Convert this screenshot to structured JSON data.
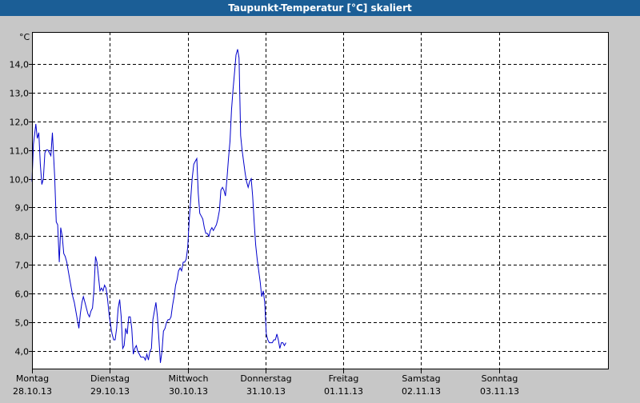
{
  "window": {
    "title": "Taupunkt-Temperatur [°C] skaliert"
  },
  "colors": {
    "titlebar": "#1b5e96",
    "background": "#c7c7c7",
    "plot": "#ffffff",
    "line": "#0000cc",
    "grid": "#000000"
  },
  "chart_data": {
    "type": "line",
    "title": "Taupunkt-Temperatur [°C] skaliert",
    "ylabel": "°C",
    "ylim": [
      3.4,
      15.1
    ],
    "xlim": [
      0,
      7.4
    ],
    "y_ticks": [
      {
        "value": 4,
        "label": "4,0"
      },
      {
        "value": 5,
        "label": "5,0"
      },
      {
        "value": 6,
        "label": "6,0"
      },
      {
        "value": 7,
        "label": "7,0"
      },
      {
        "value": 8,
        "label": "8,0"
      },
      {
        "value": 9,
        "label": "9,0"
      },
      {
        "value": 10,
        "label": "10,0"
      },
      {
        "value": 11,
        "label": "11,0"
      },
      {
        "value": 12,
        "label": "12,0"
      },
      {
        "value": 13,
        "label": "13,0"
      },
      {
        "value": 14,
        "label": "14,0"
      }
    ],
    "x_ticks": [
      {
        "value": 0,
        "day": "Montag",
        "date": "28.10.13"
      },
      {
        "value": 1,
        "day": "Dienstag",
        "date": "29.10.13"
      },
      {
        "value": 2,
        "day": "Mittwoch",
        "date": "30.10.13"
      },
      {
        "value": 3,
        "day": "Donnerstag",
        "date": "31.10.13"
      },
      {
        "value": 4,
        "day": "Freitag",
        "date": "01.11.13"
      },
      {
        "value": 5,
        "day": "Samstag",
        "date": "02.11.13"
      },
      {
        "value": 6,
        "day": "Sonntag",
        "date": "03.11.13"
      }
    ],
    "grid": true,
    "series": [
      {
        "points": [
          [
            0.0,
            9.9
          ],
          [
            0.019,
            11.2
          ],
          [
            0.049,
            11.9
          ],
          [
            0.068,
            11.4
          ],
          [
            0.087,
            11.6
          ],
          [
            0.107,
            10.5
          ],
          [
            0.126,
            9.8
          ],
          [
            0.146,
            10.0
          ],
          [
            0.165,
            10.9
          ],
          [
            0.184,
            11.0
          ],
          [
            0.204,
            11.0
          ],
          [
            0.223,
            10.9
          ],
          [
            0.243,
            10.8
          ],
          [
            0.262,
            11.6
          ],
          [
            0.291,
            10.1
          ],
          [
            0.311,
            8.5
          ],
          [
            0.33,
            8.4
          ],
          [
            0.35,
            7.1
          ],
          [
            0.369,
            8.3
          ],
          [
            0.388,
            8.0
          ],
          [
            0.408,
            7.4
          ],
          [
            0.427,
            7.3
          ],
          [
            0.447,
            7.1
          ],
          [
            0.466,
            6.8
          ],
          [
            0.485,
            6.5
          ],
          [
            0.505,
            6.2
          ],
          [
            0.524,
            5.9
          ],
          [
            0.544,
            5.7
          ],
          [
            0.563,
            5.4
          ],
          [
            0.583,
            5.1
          ],
          [
            0.602,
            4.8
          ],
          [
            0.621,
            5.3
          ],
          [
            0.641,
            5.7
          ],
          [
            0.66,
            5.9
          ],
          [
            0.68,
            5.7
          ],
          [
            0.699,
            5.5
          ],
          [
            0.718,
            5.3
          ],
          [
            0.738,
            5.2
          ],
          [
            0.757,
            5.4
          ],
          [
            0.777,
            5.5
          ],
          [
            0.796,
            6.1
          ],
          [
            0.816,
            7.3
          ],
          [
            0.835,
            7.1
          ],
          [
            0.854,
            6.6
          ],
          [
            0.874,
            6.1
          ],
          [
            0.893,
            6.2
          ],
          [
            0.913,
            6.1
          ],
          [
            0.932,
            6.3
          ],
          [
            0.951,
            6.2
          ],
          [
            0.971,
            5.8
          ],
          [
            0.99,
            5.3
          ],
          [
            1.01,
            4.9
          ],
          [
            1.029,
            4.6
          ],
          [
            1.049,
            4.4
          ],
          [
            1.068,
            4.4
          ],
          [
            1.087,
            4.8
          ],
          [
            1.107,
            5.5
          ],
          [
            1.126,
            5.8
          ],
          [
            1.146,
            5.2
          ],
          [
            1.165,
            4.1
          ],
          [
            1.184,
            4.2
          ],
          [
            1.204,
            4.8
          ],
          [
            1.223,
            4.6
          ],
          [
            1.243,
            5.2
          ],
          [
            1.262,
            5.2
          ],
          [
            1.282,
            4.8
          ],
          [
            1.301,
            3.9
          ],
          [
            1.32,
            4.1
          ],
          [
            1.34,
            4.2
          ],
          [
            1.359,
            4.0
          ],
          [
            1.379,
            3.9
          ],
          [
            1.398,
            3.8
          ],
          [
            1.417,
            3.8
          ],
          [
            1.437,
            3.8
          ],
          [
            1.456,
            3.7
          ],
          [
            1.476,
            3.9
          ],
          [
            1.495,
            3.7
          ],
          [
            1.515,
            4.0
          ],
          [
            1.534,
            4.1
          ],
          [
            1.553,
            5.1
          ],
          [
            1.573,
            5.4
          ],
          [
            1.592,
            5.7
          ],
          [
            1.612,
            5.2
          ],
          [
            1.631,
            4.4
          ],
          [
            1.65,
            3.6
          ],
          [
            1.67,
            4.0
          ],
          [
            1.689,
            4.7
          ],
          [
            1.709,
            4.8
          ],
          [
            1.728,
            5.0
          ],
          [
            1.748,
            5.1
          ],
          [
            1.767,
            5.1
          ],
          [
            1.786,
            5.2
          ],
          [
            1.806,
            5.6
          ],
          [
            1.825,
            5.9
          ],
          [
            1.845,
            6.3
          ],
          [
            1.864,
            6.5
          ],
          [
            1.883,
            6.8
          ],
          [
            1.903,
            6.9
          ],
          [
            1.922,
            6.8
          ],
          [
            1.942,
            7.1
          ],
          [
            1.961,
            7.1
          ],
          [
            1.981,
            7.2
          ],
          [
            2.0,
            7.6
          ],
          [
            2.019,
            8.5
          ],
          [
            2.039,
            9.3
          ],
          [
            2.058,
            10.0
          ],
          [
            2.078,
            10.5
          ],
          [
            2.097,
            10.6
          ],
          [
            2.117,
            10.7
          ],
          [
            2.136,
            9.5
          ],
          [
            2.155,
            8.8
          ],
          [
            2.175,
            8.7
          ],
          [
            2.194,
            8.6
          ],
          [
            2.214,
            8.3
          ],
          [
            2.233,
            8.1
          ],
          [
            2.252,
            8.1
          ],
          [
            2.272,
            8.0
          ],
          [
            2.291,
            8.2
          ],
          [
            2.311,
            8.3
          ],
          [
            2.33,
            8.2
          ],
          [
            2.35,
            8.3
          ],
          [
            2.369,
            8.4
          ],
          [
            2.388,
            8.6
          ],
          [
            2.408,
            8.9
          ],
          [
            2.427,
            9.6
          ],
          [
            2.447,
            9.7
          ],
          [
            2.466,
            9.6
          ],
          [
            2.485,
            9.4
          ],
          [
            2.505,
            10.0
          ],
          [
            2.524,
            10.7
          ],
          [
            2.544,
            11.3
          ],
          [
            2.563,
            12.4
          ],
          [
            2.583,
            13.1
          ],
          [
            2.602,
            13.7
          ],
          [
            2.621,
            14.3
          ],
          [
            2.641,
            14.5
          ],
          [
            2.66,
            14.2
          ],
          [
            2.68,
            11.5
          ],
          [
            2.699,
            11.0
          ],
          [
            2.718,
            10.6
          ],
          [
            2.738,
            10.2
          ],
          [
            2.757,
            9.9
          ],
          [
            2.777,
            9.7
          ],
          [
            2.796,
            9.9
          ],
          [
            2.816,
            10.0
          ],
          [
            2.835,
            9.4
          ],
          [
            2.854,
            8.5
          ],
          [
            2.874,
            7.7
          ],
          [
            2.893,
            7.2
          ],
          [
            2.913,
            6.8
          ],
          [
            2.932,
            6.4
          ],
          [
            2.951,
            5.9
          ],
          [
            2.971,
            6.1
          ],
          [
            2.99,
            5.7
          ],
          [
            3.01,
            4.6
          ],
          [
            3.029,
            4.4
          ],
          [
            3.049,
            4.3
          ],
          [
            3.068,
            4.3
          ],
          [
            3.087,
            4.3
          ],
          [
            3.107,
            4.4
          ],
          [
            3.126,
            4.4
          ],
          [
            3.146,
            4.6
          ],
          [
            3.165,
            4.4
          ],
          [
            3.184,
            4.1
          ],
          [
            3.204,
            4.3
          ],
          [
            3.223,
            4.3
          ],
          [
            3.243,
            4.2
          ],
          [
            3.262,
            4.3
          ]
        ]
      }
    ]
  }
}
